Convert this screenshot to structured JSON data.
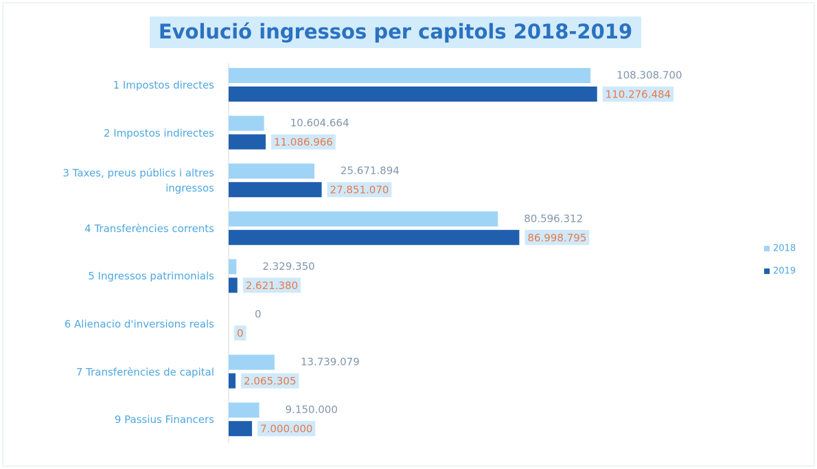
{
  "chart_data": {
    "type": "hbar",
    "title": "Evolució ingressos per capitols  2018-2019",
    "categories": [
      "1 Impostos directes",
      "2 Impostos indirectes",
      "3 Taxes, preus públics i altres ingressos",
      "4 Transferències corrents",
      "5 Ingressos patrimonials",
      "6 Alienacio d'inversions reals",
      "7 Transferències de capital",
      "9 Passius Financers"
    ],
    "series": [
      {
        "name": "2018",
        "color": "#9fd4f6",
        "values": [
          108308700,
          10604664,
          25671894,
          80596312,
          2329350,
          0,
          13739079,
          9150000
        ],
        "value_labels": [
          "108.308.700",
          "10.604.664",
          "25.671.894",
          "80.596.312",
          "2.329.350",
          "0",
          "13.739.079",
          "9.150.000"
        ]
      },
      {
        "name": "2019",
        "color": "#1f5fae",
        "values": [
          110276484,
          11086966,
          27851070,
          86998795,
          2621380,
          0,
          2065305,
          7000000
        ],
        "value_labels": [
          "110.276.484",
          "11.086.966",
          "27.851.070",
          "86.998.795",
          "2.621.380",
          "0",
          "2.065.305",
          "7.000.000"
        ]
      }
    ],
    "xlim": [
      0,
      120000000
    ],
    "legend": "right"
  }
}
